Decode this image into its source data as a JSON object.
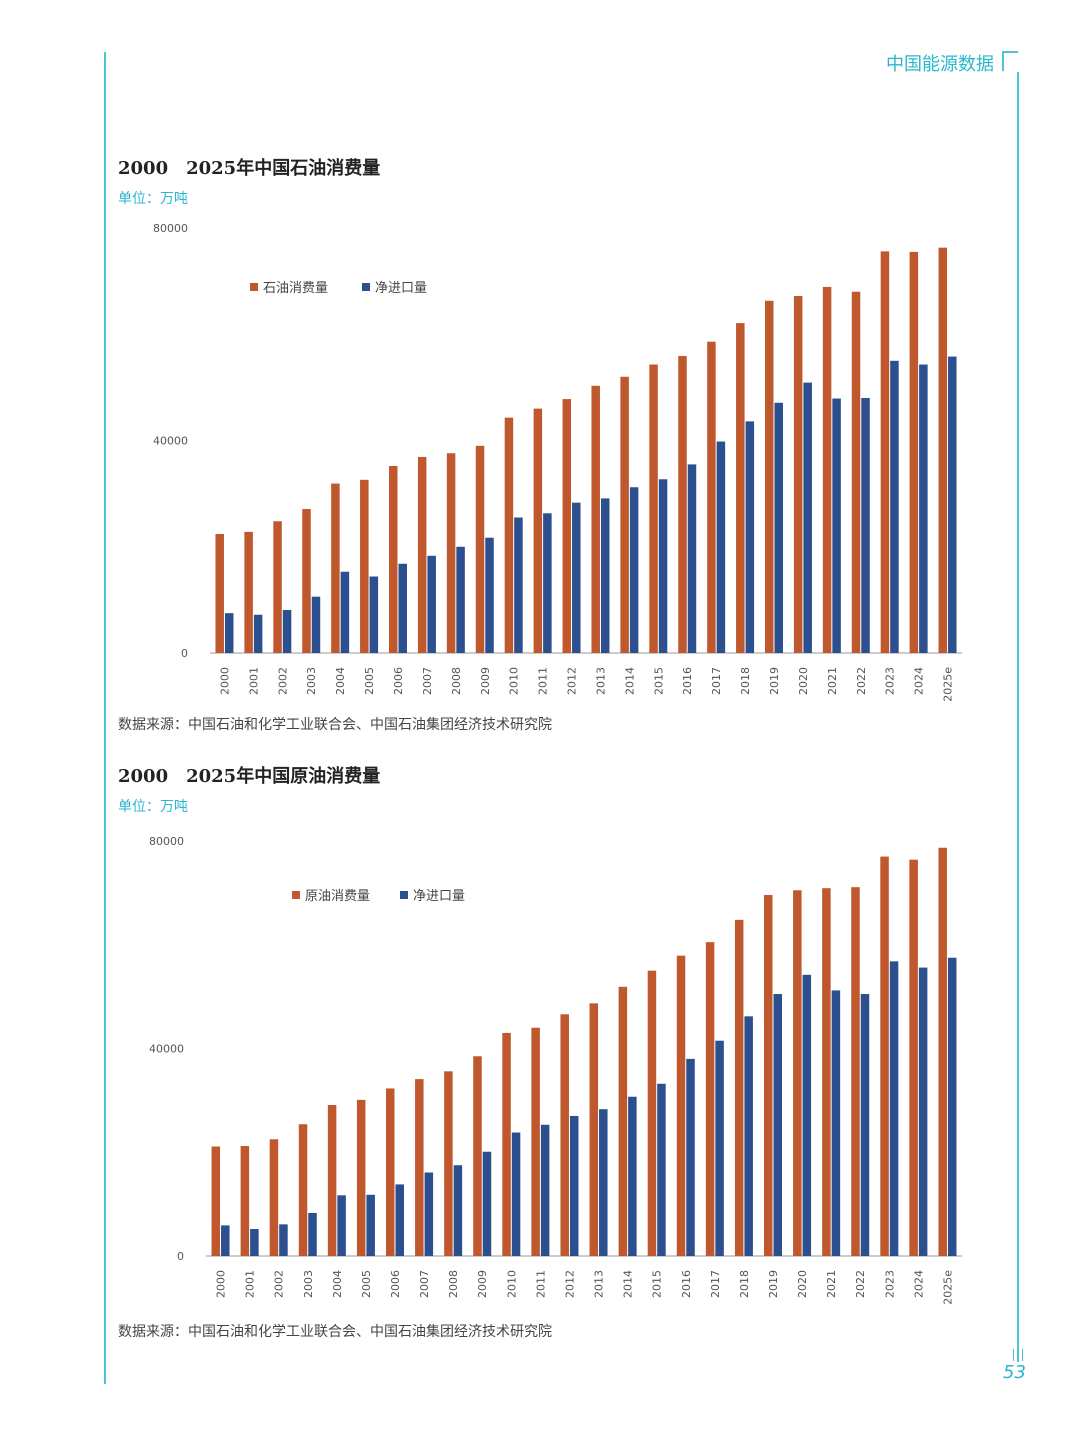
{
  "header": {
    "title": "中国能源数据",
    "page_number": "53"
  },
  "colors": {
    "accent": "#28b7cf",
    "series_a": "#c0582d",
    "series_b": "#2c4f8f"
  },
  "sources": {
    "chart1": "数据来源：中国石油和化学工业联合会、中国石油集团经济技术研究院",
    "chart2": "数据来源：中国石油和化学工业联合会、中国石油集团经济技术研究院"
  },
  "chart_data": [
    {
      "type": "bar",
      "title": "2000　2025年中国石油消费量",
      "unit": "单位：万吨",
      "categories": [
        "2000",
        "2001",
        "2002",
        "2003",
        "2004",
        "2005",
        "2006",
        "2007",
        "2008",
        "2009",
        "2010",
        "2011",
        "2012",
        "2013",
        "2014",
        "2015",
        "2016",
        "2017",
        "2018",
        "2019",
        "2020",
        "2021",
        "2022",
        "2023",
        "2024",
        "2025e"
      ],
      "series": [
        {
          "name": "石油消费量",
          "values": [
            22400,
            22800,
            24800,
            27100,
            31900,
            32600,
            35200,
            36900,
            37600,
            39000,
            44300,
            46000,
            47800,
            50300,
            52000,
            54300,
            55900,
            58600,
            62100,
            66300,
            67200,
            68900,
            68000,
            75600,
            75500,
            76300
          ]
        },
        {
          "name": "净进口量",
          "values": [
            7500,
            7200,
            8100,
            10600,
            15300,
            14400,
            16800,
            18300,
            20000,
            21700,
            25500,
            26300,
            28300,
            29100,
            31200,
            32700,
            35500,
            39800,
            43600,
            47100,
            50900,
            47900,
            48000,
            55000,
            54300,
            55800
          ]
        }
      ],
      "yticks": [
        "0",
        "40000",
        "80000"
      ],
      "ylim": [
        0,
        80000
      ],
      "legend": "top-left"
    },
    {
      "type": "bar",
      "title": "2000　2025年中国原油消费量",
      "unit": "单位：万吨",
      "categories": [
        "2000",
        "2001",
        "2002",
        "2003",
        "2004",
        "2005",
        "2006",
        "2007",
        "2008",
        "2009",
        "2010",
        "2011",
        "2012",
        "2013",
        "2014",
        "2015",
        "2016",
        "2017",
        "2018",
        "2019",
        "2020",
        "2021",
        "2022",
        "2023",
        "2024",
        "2025e"
      ],
      "series": [
        {
          "name": "原油消费量",
          "values": [
            21100,
            21200,
            22500,
            25400,
            29100,
            30100,
            32300,
            34100,
            35600,
            38500,
            43000,
            44000,
            46600,
            48700,
            51900,
            55000,
            57900,
            60500,
            64800,
            69600,
            70500,
            70900,
            71100,
            77000,
            76400,
            78700
          ]
        },
        {
          "name": "净进口量",
          "values": [
            5900,
            5200,
            6100,
            8300,
            11700,
            11800,
            13800,
            16100,
            17500,
            20100,
            23800,
            25300,
            27000,
            28300,
            30700,
            33200,
            38000,
            41500,
            46200,
            50500,
            54200,
            51200,
            50500,
            56800,
            55600,
            57500
          ]
        }
      ],
      "yticks": [
        "0",
        "40000",
        "80000"
      ],
      "ylim": [
        0,
        80000
      ],
      "legend": "top-left"
    }
  ]
}
